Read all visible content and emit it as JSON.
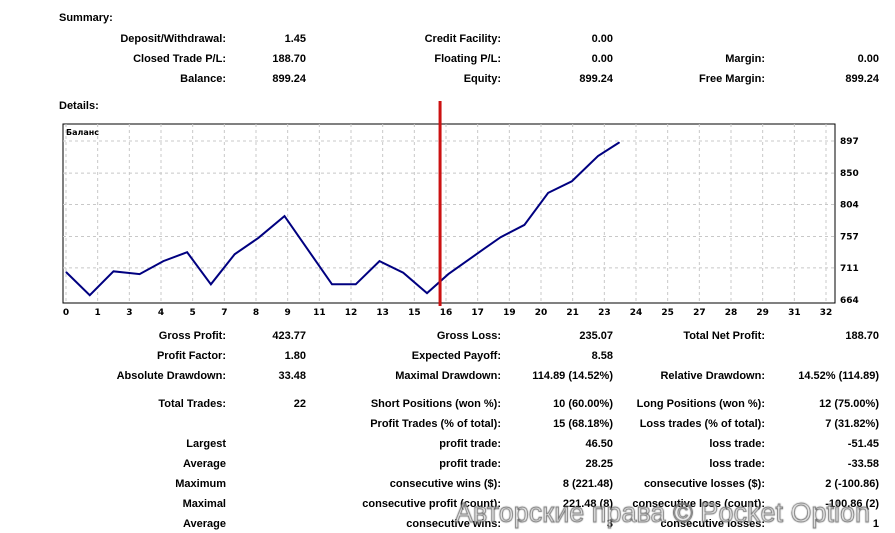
{
  "summary": {
    "title": "Summary:",
    "rows": [
      [
        [
          "Deposit/Withdrawal:",
          "1.45"
        ],
        [
          "Credit Facility:",
          "0.00"
        ],
        null
      ],
      [
        [
          "Closed Trade P/L:",
          "188.70"
        ],
        [
          "Floating P/L:",
          "0.00"
        ],
        [
          "Margin:",
          "0.00"
        ]
      ],
      [
        [
          "Balance:",
          "899.24"
        ],
        [
          "Equity:",
          "899.24"
        ],
        [
          "Free Margin:",
          "899.24"
        ]
      ]
    ]
  },
  "details": {
    "title": "Details:"
  },
  "stats": [
    [
      [
        "Gross Profit:",
        "423.77"
      ],
      [
        "Gross Loss:",
        "235.07"
      ],
      [
        "Total Net Profit:",
        "188.70"
      ]
    ],
    [
      [
        "Profit Factor:",
        "1.80"
      ],
      [
        "Expected Payoff:",
        "8.58"
      ],
      null
    ],
    [
      [
        "Absolute Drawdown:",
        "33.48"
      ],
      [
        "Maximal Drawdown:",
        "114.89 (14.52%)"
      ],
      [
        "Relative Drawdown:",
        "14.52% (114.89)"
      ]
    ],
    [
      [
        "Total Trades:",
        "22"
      ],
      [
        "Short Positions (won %):",
        "10 (60.00%)"
      ],
      [
        "Long Positions (won %):",
        "12 (75.00%)"
      ]
    ],
    [
      null,
      [
        "Profit Trades (% of total):",
        "15 (68.18%)"
      ],
      [
        "Loss trades (% of total):",
        "7 (31.82%)"
      ]
    ],
    [
      [
        "Largest",
        ""
      ],
      [
        "profit trade:",
        "46.50"
      ],
      [
        "loss trade:",
        "-51.45"
      ]
    ],
    [
      [
        "Average",
        ""
      ],
      [
        "profit trade:",
        "28.25"
      ],
      [
        "loss trade:",
        "-33.58"
      ]
    ],
    [
      [
        "Maximum",
        ""
      ],
      [
        "consecutive wins ($):",
        "8 (221.48)"
      ],
      [
        "consecutive losses ($):",
        "2 (-100.86)"
      ]
    ],
    [
      [
        "Maximal",
        ""
      ],
      [
        "consecutive profit (count):",
        "221.48 (8)"
      ],
      [
        "consecutive loss (count):",
        "-100.86 (2)"
      ]
    ],
    [
      [
        "Average",
        ""
      ],
      [
        "consecutive wins:",
        "3"
      ],
      [
        "consecutive losses:",
        "1"
      ]
    ]
  ],
  "chart_data": {
    "type": "line",
    "title": "Баланс",
    "series": [
      {
        "name": "Баланс",
        "color": "#000080",
        "x": [
          0,
          1,
          2,
          3.1,
          4.1,
          5.1,
          6.1,
          7.1,
          8.1,
          9.2,
          11.2,
          12.2,
          13.2,
          14.2,
          15.2,
          16.1,
          17.6,
          18.3,
          19.3,
          20.3,
          21.3,
          22.4,
          23.3
        ],
        "values": [
          705,
          671,
          706,
          702,
          721,
          734,
          687,
          731,
          755,
          787,
          687,
          687,
          721,
          704,
          674,
          702,
          739,
          756,
          774,
          821,
          838,
          875,
          895
        ]
      }
    ],
    "xticks": [
      "0",
      "1",
      "3",
      "4",
      "5",
      "7",
      "8",
      "9",
      "11",
      "12",
      "13",
      "15",
      "16",
      "17",
      "19",
      "20",
      "21",
      "23",
      "24",
      "25",
      "27",
      "28",
      "29",
      "31",
      "32"
    ],
    "yticks": [
      "664",
      "711",
      "757",
      "804",
      "850",
      "897"
    ],
    "xlim": [
      0,
      32
    ],
    "ylim": [
      664,
      897
    ],
    "marker_x": 15.75,
    "marker_color": "#cc1111",
    "grid": true
  },
  "watermark": "Авторские права © Pocket Option"
}
